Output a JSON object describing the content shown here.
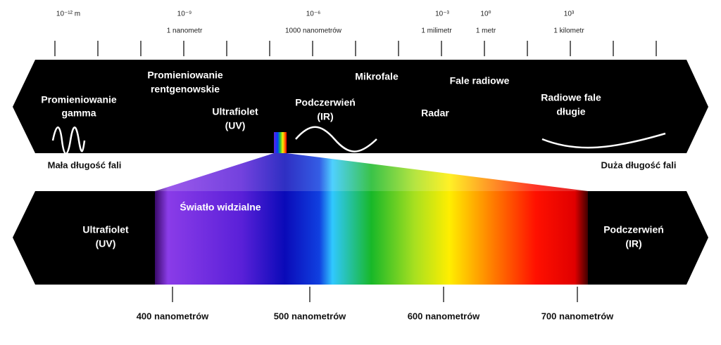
{
  "scale": [
    {
      "power": "10⁻¹² m"
    },
    {
      "power": "10⁻⁹",
      "label": "1 nanometr"
    },
    {
      "power": "10⁻⁶",
      "label": "1000 nanometrów"
    },
    {
      "power": "10⁻³",
      "label": "1 milimetr"
    },
    {
      "power": "10⁰",
      "label": "1 metr"
    },
    {
      "power": "10³",
      "label": "1 kilometr"
    }
  ],
  "spectrum": {
    "gamma": [
      "Promieniowanie",
      "gamma"
    ],
    "xray": [
      "Promieniowanie",
      "rentgenowskie"
    ],
    "uv": [
      "Ultrafiolet",
      "(UV)"
    ],
    "ir": [
      "Podczerwień",
      "(IR)"
    ],
    "microwave": "Mikrofale",
    "radio": "Fale radiowe",
    "radar": "Radar",
    "longwave": [
      "Radiowe fale",
      "długie"
    ],
    "short_wave": "Mała długość fali",
    "long_wave": "Duża długość fali"
  },
  "visible": {
    "uv": [
      "Ultrafiolet",
      "(UV)"
    ],
    "title": "Światło widzialne",
    "ir": [
      "Podczerwień",
      "(IR)"
    ],
    "ticks": [
      "400 nanometrów",
      "500 nanometrów",
      "600 nanometrów",
      "700 nanometrów"
    ]
  }
}
